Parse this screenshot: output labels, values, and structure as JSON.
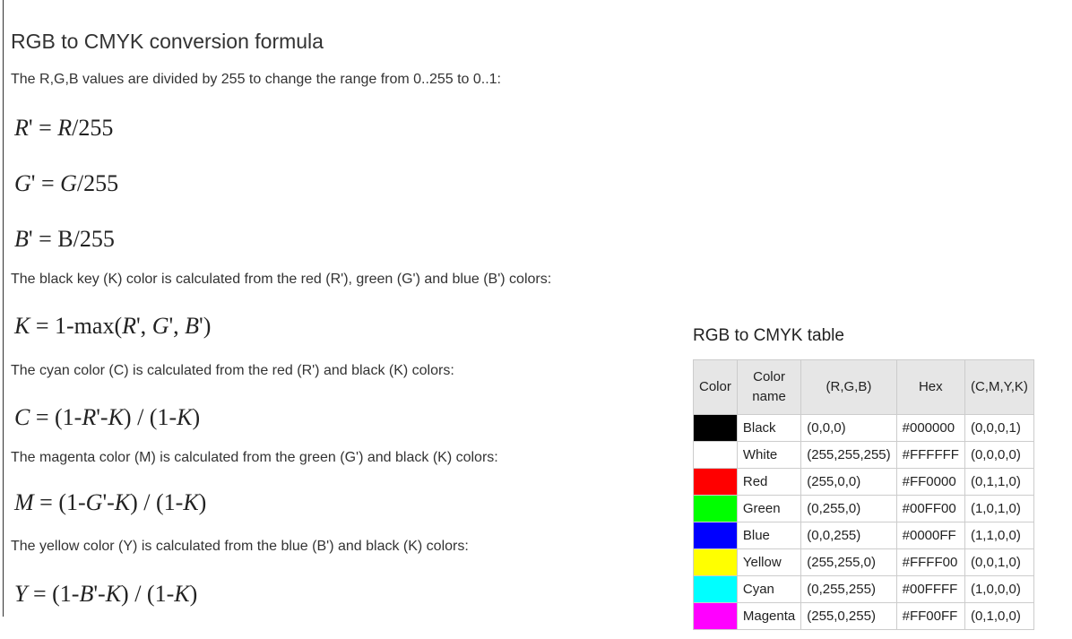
{
  "heading": "RGB to CMYK conversion formula",
  "paragraphs": {
    "p1": "The R,G,B values are divided by 255 to change the range from 0..255 to 0..1:",
    "p2": "The black key (K) color is calculated from the red (R'), green (G') and blue (B') colors:",
    "p3": "The cyan color (C) is calculated from the red (R') and black (K) colors:",
    "p4": "The magenta color (M) is calculated from the green (G') and black (K) colors:",
    "p5": "The yellow color (Y) is calculated from the blue (B') and black (K) colors:"
  },
  "formulas": {
    "r": {
      "lhs": "R",
      "rhs": "R",
      "den": "/255"
    },
    "g": {
      "lhs": "G",
      "rhs": "G",
      "den": "/255"
    },
    "b": {
      "lhs": "B",
      "rhs": "B/255"
    },
    "k": {
      "lhs": "K",
      "pre": "1-max(",
      "a": "R",
      "b": "G",
      "c": "B"
    },
    "c": {
      "lhs": "C",
      "x": "R"
    },
    "m": {
      "lhs": "M",
      "x": "G"
    },
    "y": {
      "lhs": "Y",
      "x": "B"
    }
  },
  "table": {
    "title": "RGB to CMYK table",
    "headers": [
      "Color",
      "Color name",
      "(R,G,B)",
      "Hex",
      "(C,M,Y,K)"
    ],
    "rows": [
      {
        "color": "#000000",
        "name": "Black",
        "rgb": "(0,0,0)",
        "hex": "#000000",
        "cmyk": "(0,0,0,1)"
      },
      {
        "color": "#FFFFFF",
        "name": "White",
        "rgb": "(255,255,255)",
        "hex": "#FFFFFF",
        "cmyk": "(0,0,0,0)"
      },
      {
        "color": "#FF0000",
        "name": "Red",
        "rgb": "(255,0,0)",
        "hex": "#FF0000",
        "cmyk": "(0,1,1,0)"
      },
      {
        "color": "#00FF00",
        "name": "Green",
        "rgb": "(0,255,0)",
        "hex": "#00FF00",
        "cmyk": "(1,0,1,0)"
      },
      {
        "color": "#0000FF",
        "name": "Blue",
        "rgb": "(0,0,255)",
        "hex": "#0000FF",
        "cmyk": "(1,1,0,0)"
      },
      {
        "color": "#FFFF00",
        "name": "Yellow",
        "rgb": "(255,255,0)",
        "hex": "#FFFF00",
        "cmyk": "(0,0,1,0)"
      },
      {
        "color": "#00FFFF",
        "name": "Cyan",
        "rgb": "(0,255,255)",
        "hex": "#00FFFF",
        "cmyk": "(1,0,0,0)"
      },
      {
        "color": "#FF00FF",
        "name": "Magenta",
        "rgb": "(255,0,255)",
        "hex": "#FF00FF",
        "cmyk": "(0,1,0,0)"
      }
    ]
  }
}
